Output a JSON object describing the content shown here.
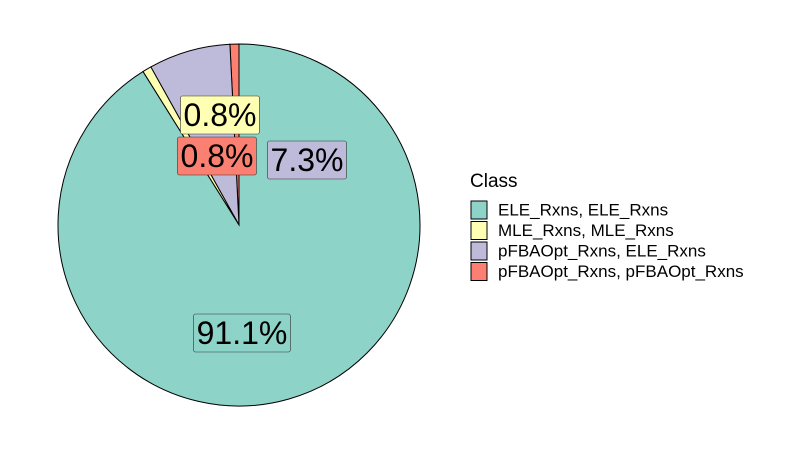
{
  "chart_data": {
    "type": "pie",
    "title": "",
    "legend": {
      "title": "Class",
      "position": "right"
    },
    "series": [
      {
        "name": "ELE_Rxns, ELE_Rxns",
        "value": 91.1,
        "label": "91.1%",
        "color": "#8DD3C7"
      },
      {
        "name": "MLE_Rxns, MLE_Rxns",
        "value": 0.8,
        "label": "0.8%",
        "color": "#FFFFB3"
      },
      {
        "name": "pFBAOpt_Rxns, ELE_Rxns",
        "value": 7.3,
        "label": "7.3%",
        "color": "#BEBADA"
      },
      {
        "name": "pFBAOpt_Rxns, pFBAOpt_Rxns",
        "value": 0.8,
        "label": "0.8%",
        "color": "#FB8072"
      }
    ]
  }
}
